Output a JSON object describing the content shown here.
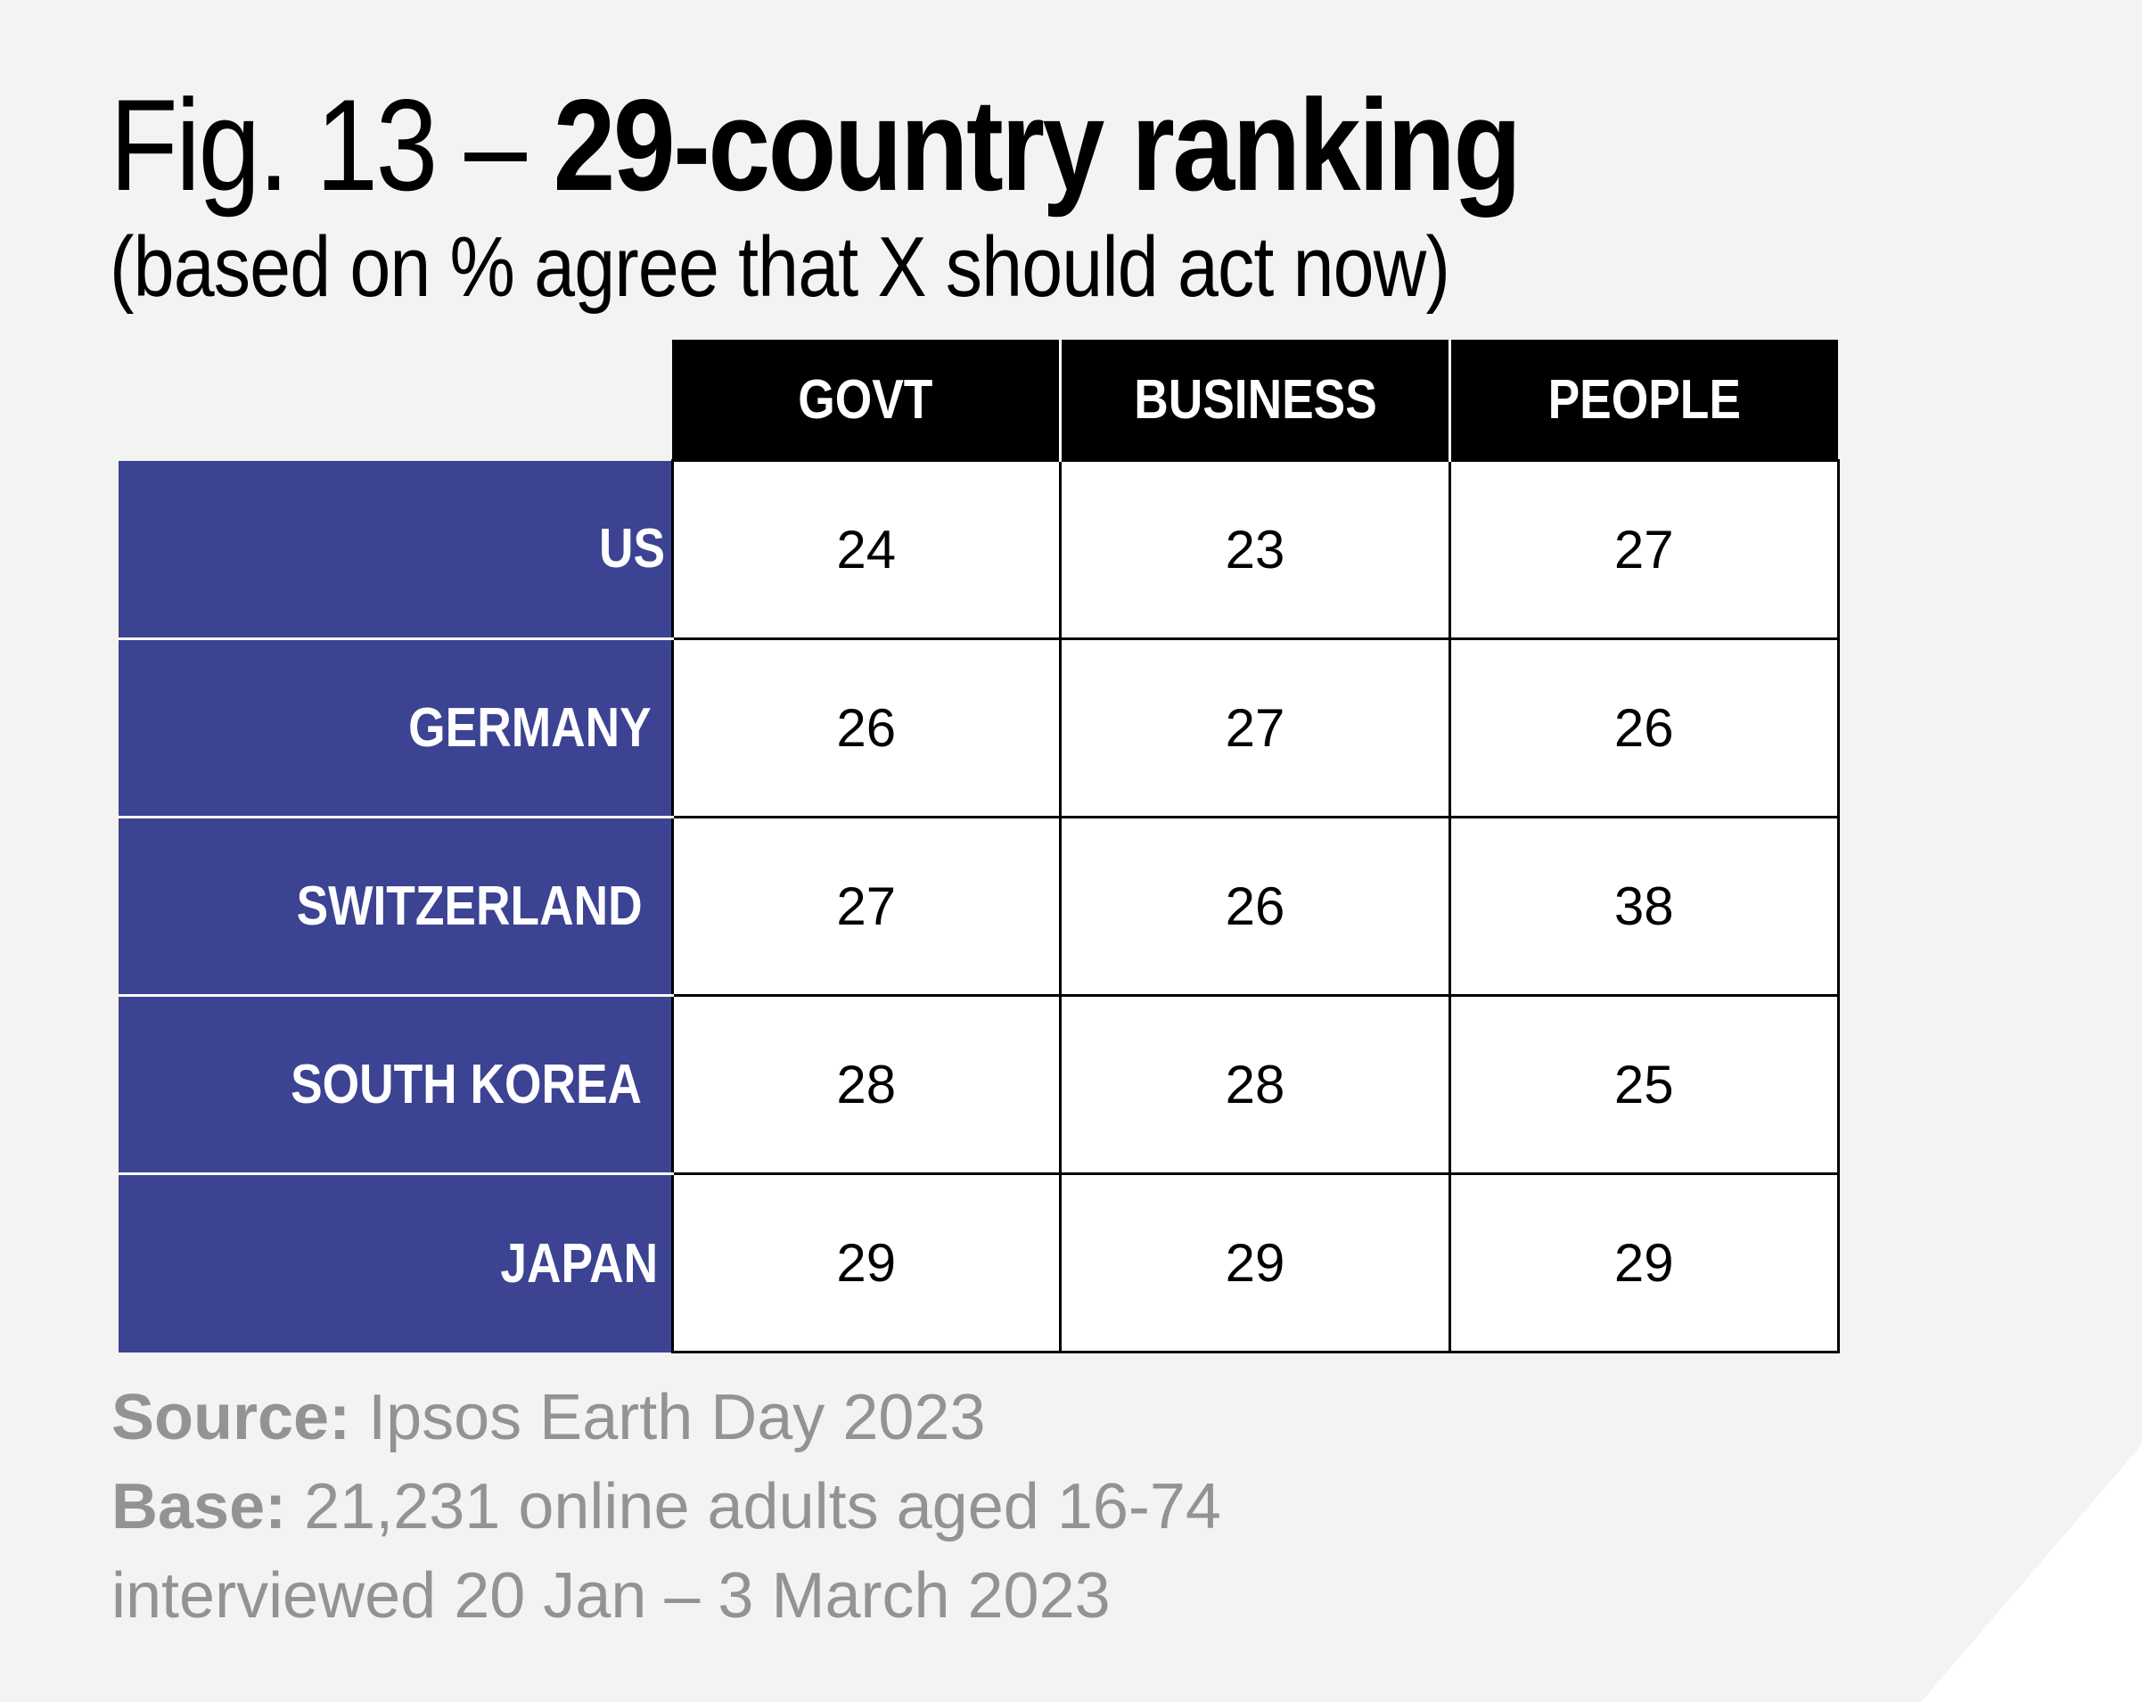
{
  "title": {
    "prefix": "Fig. 13 – ",
    "main": "29-country ranking"
  },
  "subtitle": "(based on % agree that X should act now)",
  "chart_data": {
    "type": "table",
    "columns": [
      "GOVT",
      "BUSINESS",
      "PEOPLE"
    ],
    "rows": [
      {
        "label": "US",
        "values": [
          24,
          23,
          27
        ]
      },
      {
        "label": "GERMANY",
        "values": [
          26,
          27,
          26
        ]
      },
      {
        "label": "SWITZERLAND",
        "values": [
          27,
          26,
          38
        ]
      },
      {
        "label": "SOUTH KOREA",
        "values": [
          28,
          28,
          25
        ]
      },
      {
        "label": "JAPAN",
        "values": [
          29,
          29,
          29
        ]
      }
    ]
  },
  "footer": {
    "source_label": "Source:",
    "source_text": " Ipsos Earth Day 2023",
    "base_label": "Base:",
    "base_text": " 21,231 online adults aged 16-74",
    "base_line2": "interviewed 20 Jan – 3 March 2023"
  },
  "colors": {
    "background": "#f3f3f1",
    "header": "#000000",
    "row_header": "#3b4392",
    "footer_text": "#939393"
  }
}
